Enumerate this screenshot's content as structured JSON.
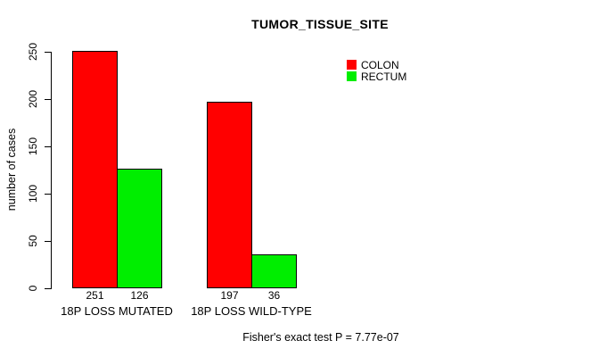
{
  "chart_data": {
    "type": "bar",
    "title": "TUMOR_TISSUE_SITE",
    "xlabel": "",
    "ylabel": "number of cases",
    "categories": [
      "18P LOSS MUTATED",
      "18P LOSS WILD-TYPE"
    ],
    "series": [
      {
        "name": "COLON",
        "color": "#FF0000",
        "values": [
          251,
          197
        ]
      },
      {
        "name": "RECTUM",
        "color": "#00EE00",
        "values": [
          126,
          36
        ]
      }
    ],
    "bar_value_labels": [
      [
        251,
        126
      ],
      [
        197,
        36
      ]
    ],
    "ylim": [
      0,
      250
    ],
    "yticks": [
      0,
      50,
      100,
      150,
      200,
      250
    ],
    "grid": false,
    "legend_position": "top-right",
    "annotation": "Fisher's exact test P = 7.77e-07",
    "colors": {
      "background": "#FFFFFF",
      "axis": "#000000"
    }
  }
}
